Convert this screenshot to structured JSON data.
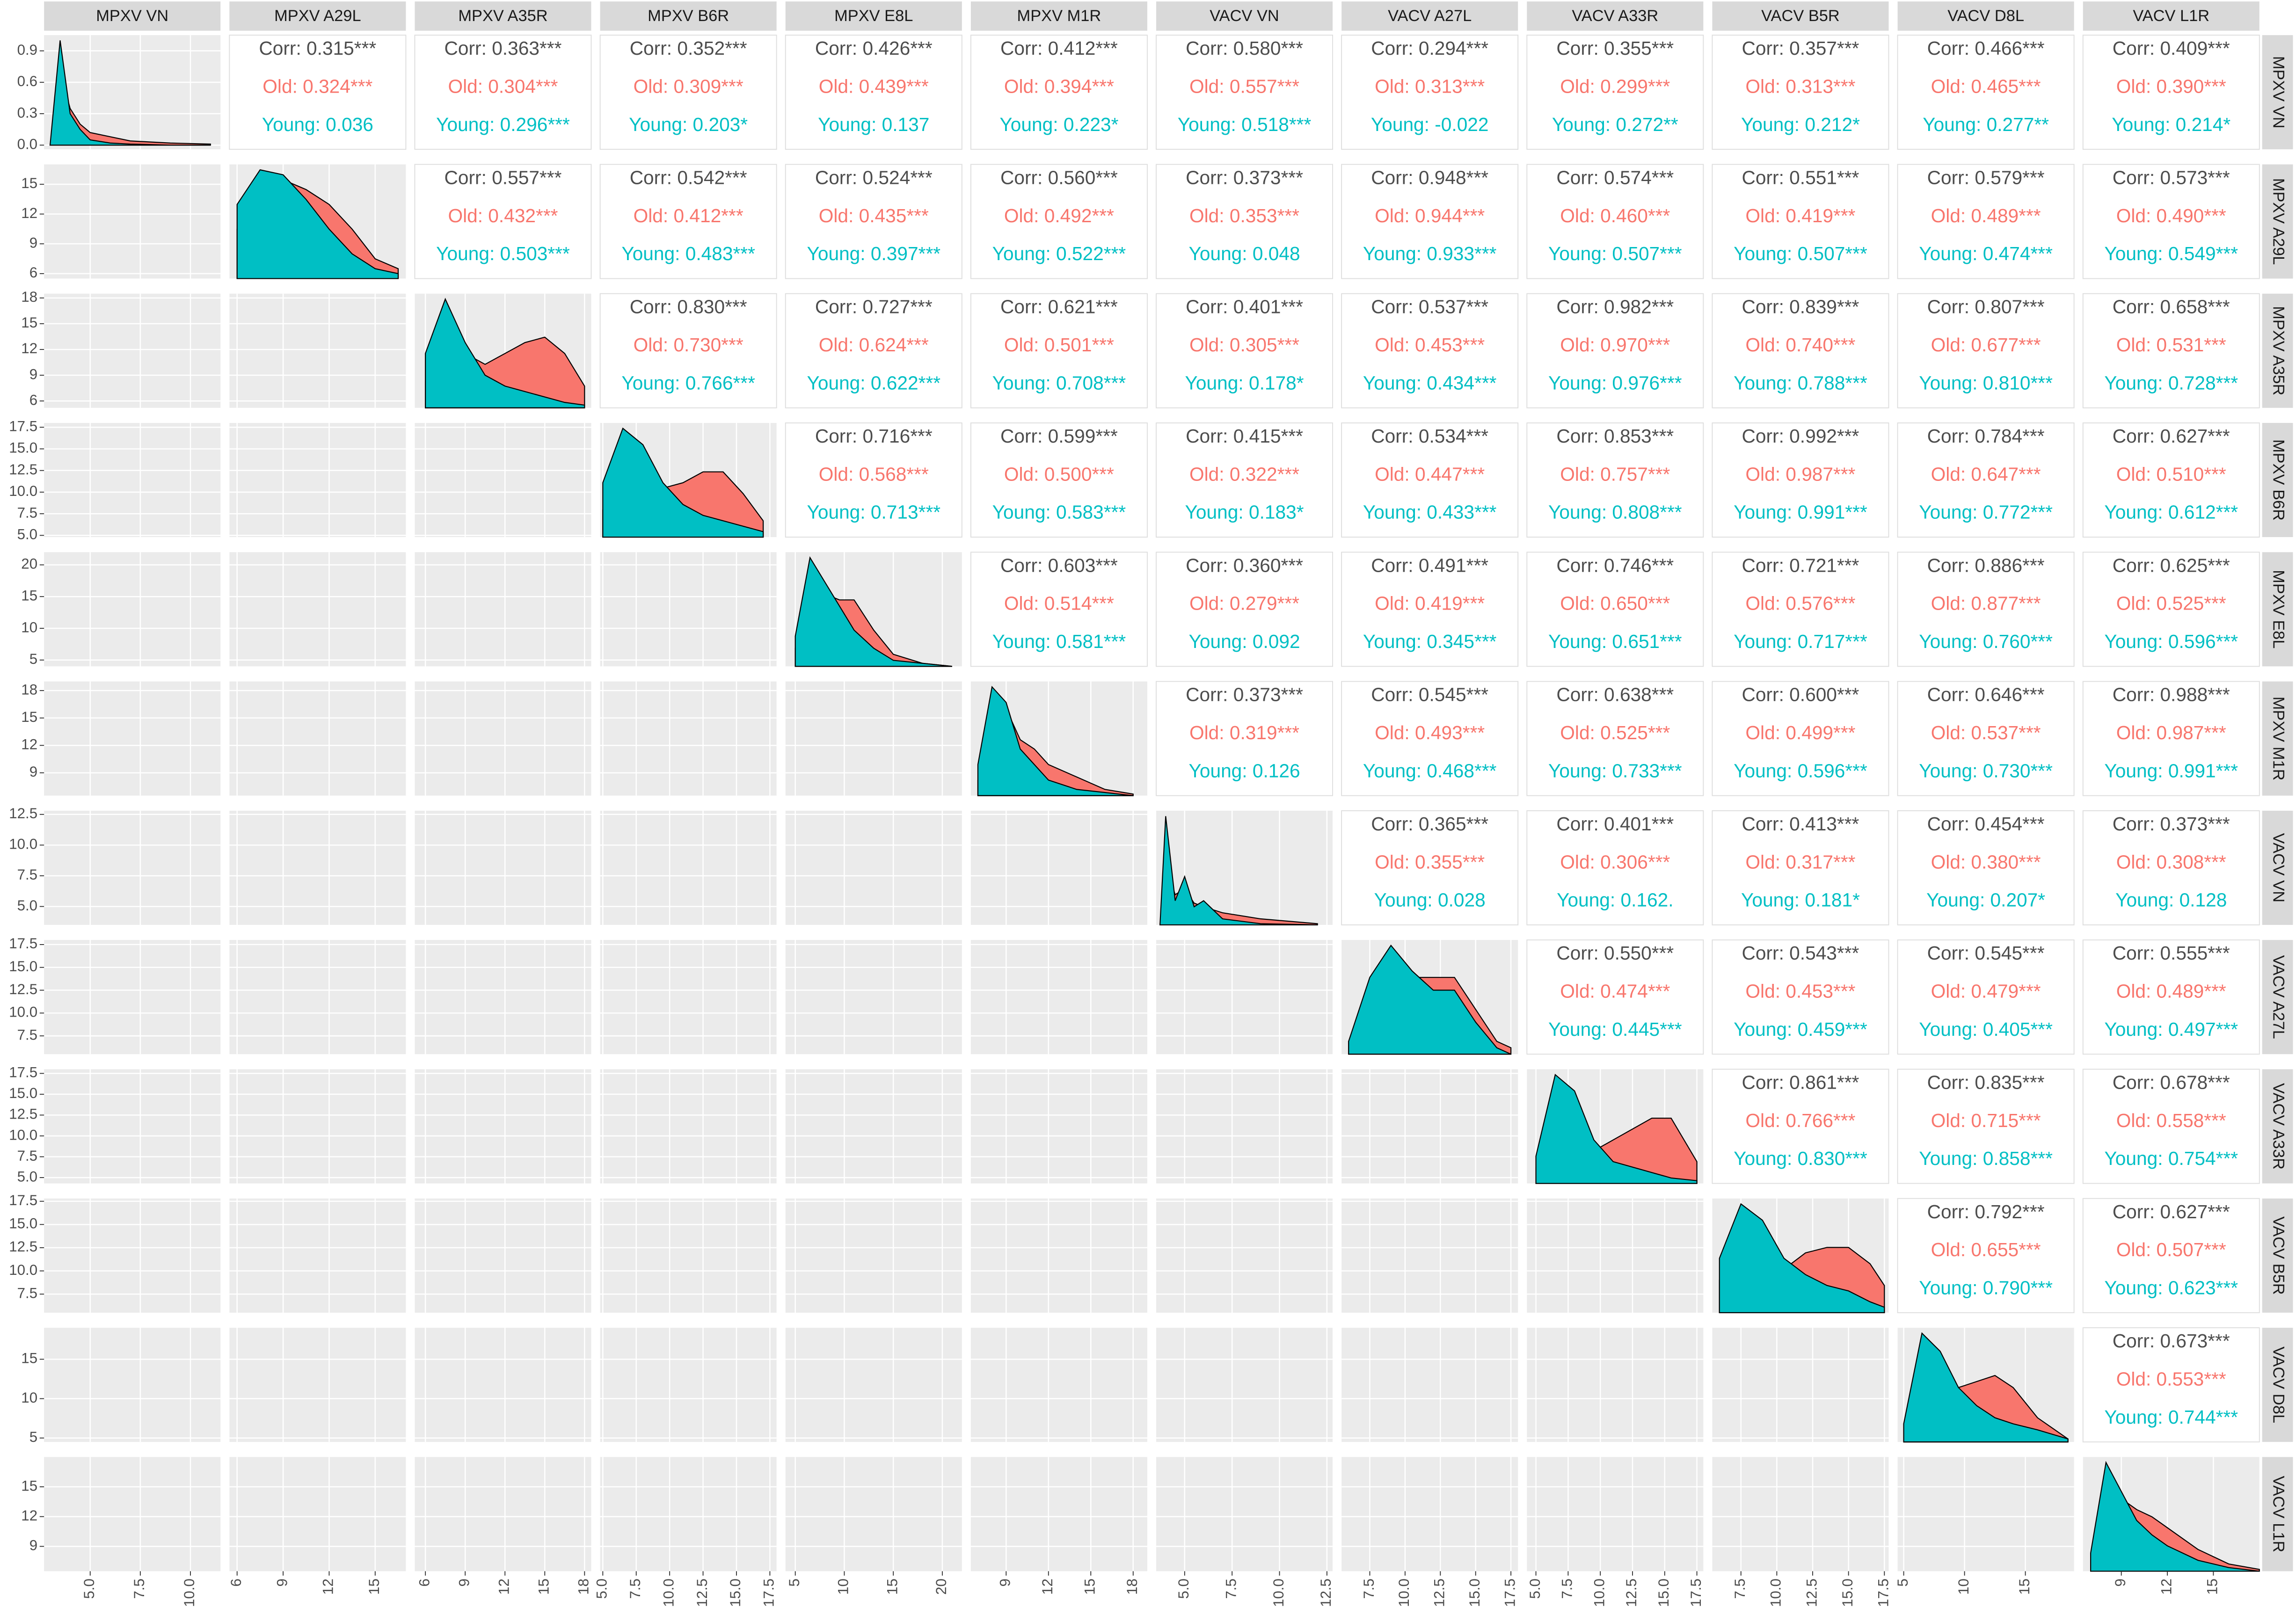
{
  "chart_data": {
    "type": "pairs",
    "groups": [
      {
        "name": "Old",
        "color": "#F8766D"
      },
      {
        "name": "Young",
        "color": "#00BFC4"
      }
    ],
    "corr_color": "#4D4D4D",
    "density_lim": [
      -0.04,
      1.05
    ],
    "density_ticks": [
      {
        "value": 0,
        "label": "0.0"
      },
      0.3,
      0.6,
      0.9
    ],
    "variables": [
      {
        "name": "MPXV VN",
        "lim": [
          2.7,
          11.5
        ],
        "ticks": [
          {
            "value": 5,
            "label": "5.0"
          },
          7.5,
          {
            "value": 10,
            "label": "10.0"
          }
        ],
        "density": {
          "x": [
            3,
            3.5,
            4,
            4.5,
            5,
            6,
            7,
            9,
            11
          ],
          "values": [
            [
              0,
              0.7,
              0.35,
              0.2,
              0.12,
              0.08,
              0.04,
              0.02,
              0.01
            ],
            [
              0,
              1.0,
              0.3,
              0.15,
              0.05,
              0.02,
              0.01,
              0,
              0
            ]
          ]
        }
      },
      {
        "name": "MPXV A29L",
        "lim": [
          5.5,
          17
        ],
        "ticks": [
          6,
          9,
          12,
          15
        ],
        "density": {
          "x": [
            6,
            7.5,
            9,
            10.5,
            12,
            13.5,
            15,
            16.5
          ],
          "values": [
            [
              0.1,
              0.19,
              0.2,
              0.18,
              0.15,
              0.1,
              0.04,
              0.02
            ],
            [
              0.15,
              0.22,
              0.21,
              0.16,
              0.1,
              0.05,
              0.02,
              0.01
            ]
          ]
        }
      },
      {
        "name": "MPXV A35R",
        "lim": [
          5.2,
          18.5
        ],
        "ticks": [
          6,
          9,
          12,
          15,
          18
        ],
        "density": {
          "x": [
            6,
            7.5,
            9,
            10.5,
            12,
            13.5,
            15,
            16.5,
            18
          ],
          "values": [
            [
              0.05,
              0.15,
              0.1,
              0.08,
              0.1,
              0.12,
              0.13,
              0.1,
              0.04
            ],
            [
              0.1,
              0.2,
              0.12,
              0.06,
              0.04,
              0.03,
              0.02,
              0.01,
              0.005
            ]
          ]
        }
      },
      {
        "name": "MPXV B6R",
        "lim": [
          4.8,
          18
        ],
        "ticks": [
          {
            "value": 5,
            "label": "5.0"
          },
          7.5,
          {
            "value": 10,
            "label": "10.0"
          },
          12.5,
          {
            "value": 15,
            "label": "15.0"
          },
          17.5
        ],
        "density": {
          "x": [
            5,
            6.5,
            8,
            9.5,
            11,
            12.5,
            14,
            15.5,
            17
          ],
          "values": [
            [
              0.05,
              0.15,
              0.13,
              0.09,
              0.1,
              0.12,
              0.12,
              0.08,
              0.03
            ],
            [
              0.1,
              0.2,
              0.17,
              0.1,
              0.06,
              0.04,
              0.03,
              0.02,
              0.01
            ]
          ]
        }
      },
      {
        "name": "MPXV E8L",
        "lim": [
          4,
          22
        ],
        "ticks": [
          5,
          10,
          15,
          20
        ],
        "density": {
          "x": [
            5,
            6.5,
            8,
            9.5,
            11,
            13,
            15,
            18,
            21
          ],
          "values": [
            [
              0.03,
              0.15,
              0.12,
              0.11,
              0.11,
              0.06,
              0.02,
              0.005,
              0
            ],
            [
              0.05,
              0.18,
              0.14,
              0.1,
              0.06,
              0.03,
              0.01,
              0.005,
              0
            ]
          ]
        }
      },
      {
        "name": "MPXV M1R",
        "lim": [
          6.5,
          19
        ],
        "ticks": [
          9,
          12,
          15,
          18
        ],
        "density": {
          "x": [
            7,
            8,
            9,
            10,
            11,
            12,
            14,
            16,
            18
          ],
          "values": [
            [
              0.05,
              0.3,
              0.28,
              0.18,
              0.15,
              0.1,
              0.06,
              0.02,
              0.005
            ],
            [
              0.1,
              0.35,
              0.3,
              0.15,
              0.1,
              0.05,
              0.02,
              0.01,
              0
            ]
          ]
        }
      },
      {
        "name": "VACV VN",
        "lim": [
          3.5,
          12.8
        ],
        "ticks": [
          {
            "value": 5,
            "label": "5.0"
          },
          7.5,
          {
            "value": 10,
            "label": "10.0"
          },
          12.5
        ],
        "density": {
          "x": [
            3.7,
            4,
            4.5,
            5,
            5.5,
            6,
            7,
            9,
            12
          ],
          "values": [
            [
              0,
              0.5,
              0.25,
              0.3,
              0.18,
              0.15,
              0.1,
              0.05,
              0.01
            ],
            [
              0,
              0.9,
              0.2,
              0.4,
              0.15,
              0.2,
              0.05,
              0.01,
              0
            ]
          ]
        }
      },
      {
        "name": "VACV A27L",
        "lim": [
          5.5,
          18
        ],
        "ticks": [
          7.5,
          {
            "value": 10,
            "label": "10.0"
          },
          12.5,
          {
            "value": 15,
            "label": "15.0"
          },
          17.5
        ],
        "density": {
          "x": [
            6,
            7.5,
            9,
            10.5,
            12,
            13.5,
            15,
            16.5,
            17.5
          ],
          "values": [
            [
              0.02,
              0.1,
              0.15,
              0.12,
              0.12,
              0.12,
              0.07,
              0.02,
              0.01
            ],
            [
              0.02,
              0.12,
              0.17,
              0.13,
              0.1,
              0.1,
              0.05,
              0.01,
              0
            ]
          ]
        }
      },
      {
        "name": "VACV A33R",
        "lim": [
          4.3,
          18
        ],
        "ticks": [
          {
            "value": 5,
            "label": "5.0"
          },
          7.5,
          {
            "value": 10,
            "label": "10.0"
          },
          12.5,
          {
            "value": 15,
            "label": "15.0"
          },
          17.5
        ],
        "density": {
          "x": [
            5,
            6.5,
            8,
            9.5,
            11,
            12.5,
            14,
            15.5,
            17.5
          ],
          "values": [
            [
              0.03,
              0.12,
              0.1,
              0.06,
              0.08,
              0.1,
              0.12,
              0.12,
              0.04
            ],
            [
              0.05,
              0.2,
              0.17,
              0.08,
              0.04,
              0.03,
              0.02,
              0.01,
              0.005
            ]
          ]
        }
      },
      {
        "name": "VACV B5R",
        "lim": [
          5.5,
          17.8
        ],
        "ticks": [
          7.5,
          {
            "value": 10,
            "label": "10.0"
          },
          12.5,
          {
            "value": 15,
            "label": "15.0"
          },
          17.5
        ],
        "density": {
          "x": [
            6,
            7.5,
            9,
            10.5,
            12,
            13.5,
            15,
            16.5,
            17.5
          ],
          "values": [
            [
              0.06,
              0.14,
              0.1,
              0.08,
              0.11,
              0.12,
              0.12,
              0.09,
              0.05
            ],
            [
              0.1,
              0.2,
              0.17,
              0.1,
              0.07,
              0.05,
              0.04,
              0.02,
              0.01
            ]
          ]
        }
      },
      {
        "name": "VACV D8L",
        "lim": [
          4.5,
          19
        ],
        "ticks": [
          5,
          10,
          15
        ],
        "density": {
          "x": [
            5,
            6.5,
            8,
            9.5,
            11,
            12.5,
            14,
            16,
            18.5
          ],
          "values": [
            [
              0.02,
              0.12,
              0.12,
              0.09,
              0.1,
              0.11,
              0.09,
              0.04,
              0.005
            ],
            [
              0.03,
              0.18,
              0.15,
              0.09,
              0.06,
              0.04,
              0.03,
              0.02,
              0.005
            ]
          ]
        }
      },
      {
        "name": "VACV L1R",
        "lim": [
          6.5,
          18
        ],
        "ticks": [
          9,
          12,
          15
        ],
        "density": {
          "x": [
            7,
            8,
            9,
            10,
            11,
            12,
            14,
            16,
            18
          ],
          "values": [
            [
              0.03,
              0.22,
              0.2,
              0.17,
              0.15,
              0.12,
              0.06,
              0.02,
              0.005
            ],
            [
              0.05,
              0.3,
              0.22,
              0.14,
              0.1,
              0.07,
              0.03,
              0.01,
              0
            ]
          ]
        }
      }
    ],
    "upper": [
      [
        [
          "Corr: 0.315***",
          "Old: 0.324***",
          "Young: 0.036"
        ],
        [
          "Corr: 0.363***",
          "Old: 0.304***",
          "Young: 0.296***"
        ],
        [
          "Corr: 0.352***",
          "Old: 0.309***",
          "Young: 0.203*"
        ],
        [
          "Corr: 0.426***",
          "Old: 0.439***",
          "Young: 0.137"
        ],
        [
          "Corr: 0.412***",
          "Old: 0.394***",
          "Young: 0.223*"
        ],
        [
          "Corr: 0.580***",
          "Old: 0.557***",
          "Young: 0.518***"
        ],
        [
          "Corr: 0.294***",
          "Old: 0.313***",
          "Young: -0.022"
        ],
        [
          "Corr: 0.355***",
          "Old: 0.299***",
          "Young: 0.272**"
        ],
        [
          "Corr: 0.357***",
          "Old: 0.313***",
          "Young: 0.212*"
        ],
        [
          "Corr: 0.466***",
          "Old: 0.465***",
          "Young: 0.277**"
        ],
        [
          "Corr: 0.409***",
          "Old: 0.390***",
          "Young: 0.214*"
        ]
      ],
      [
        [
          "Corr: 0.557***",
          "Old: 0.432***",
          "Young: 0.503***"
        ],
        [
          "Corr: 0.542***",
          "Old: 0.412***",
          "Young: 0.483***"
        ],
        [
          "Corr: 0.524***",
          "Old: 0.435***",
          "Young: 0.397***"
        ],
        [
          "Corr: 0.560***",
          "Old: 0.492***",
          "Young: 0.522***"
        ],
        [
          "Corr: 0.373***",
          "Old: 0.353***",
          "Young: 0.048"
        ],
        [
          "Corr: 0.948***",
          "Old: 0.944***",
          "Young: 0.933***"
        ],
        [
          "Corr: 0.574***",
          "Old: 0.460***",
          "Young: 0.507***"
        ],
        [
          "Corr: 0.551***",
          "Old: 0.419***",
          "Young: 0.507***"
        ],
        [
          "Corr: 0.579***",
          "Old: 0.489***",
          "Young: 0.474***"
        ],
        [
          "Corr: 0.573***",
          "Old: 0.490***",
          "Young: 0.549***"
        ]
      ],
      [
        [
          "Corr: 0.830***",
          "Old: 0.730***",
          "Young: 0.766***"
        ],
        [
          "Corr: 0.727***",
          "Old: 0.624***",
          "Young: 0.622***"
        ],
        [
          "Corr: 0.621***",
          "Old: 0.501***",
          "Young: 0.708***"
        ],
        [
          "Corr: 0.401***",
          "Old: 0.305***",
          "Young: 0.178*"
        ],
        [
          "Corr: 0.537***",
          "Old: 0.453***",
          "Young: 0.434***"
        ],
        [
          "Corr: 0.982***",
          "Old: 0.970***",
          "Young: 0.976***"
        ],
        [
          "Corr: 0.839***",
          "Old: 0.740***",
          "Young: 0.788***"
        ],
        [
          "Corr: 0.807***",
          "Old: 0.677***",
          "Young: 0.810***"
        ],
        [
          "Corr: 0.658***",
          "Old: 0.531***",
          "Young: 0.728***"
        ]
      ],
      [
        [
          "Corr: 0.716***",
          "Old: 0.568***",
          "Young: 0.713***"
        ],
        [
          "Corr: 0.599***",
          "Old: 0.500***",
          "Young: 0.583***"
        ],
        [
          "Corr: 0.415***",
          "Old: 0.322***",
          "Young: 0.183*"
        ],
        [
          "Corr: 0.534***",
          "Old: 0.447***",
          "Young: 0.433***"
        ],
        [
          "Corr: 0.853***",
          "Old: 0.757***",
          "Young: 0.808***"
        ],
        [
          "Corr: 0.992***",
          "Old: 0.987***",
          "Young: 0.991***"
        ],
        [
          "Corr: 0.784***",
          "Old: 0.647***",
          "Young: 0.772***"
        ],
        [
          "Corr: 0.627***",
          "Old: 0.510***",
          "Young: 0.612***"
        ]
      ],
      [
        [
          "Corr: 0.603***",
          "Old: 0.514***",
          "Young: 0.581***"
        ],
        [
          "Corr: 0.360***",
          "Old: 0.279***",
          "Young: 0.092"
        ],
        [
          "Corr: 0.491***",
          "Old: 0.419***",
          "Young: 0.345***"
        ],
        [
          "Corr: 0.746***",
          "Old: 0.650***",
          "Young: 0.651***"
        ],
        [
          "Corr: 0.721***",
          "Old: 0.576***",
          "Young: 0.717***"
        ],
        [
          "Corr: 0.886***",
          "Old: 0.877***",
          "Young: 0.760***"
        ],
        [
          "Corr: 0.625***",
          "Old: 0.525***",
          "Young: 0.596***"
        ]
      ],
      [
        [
          "Corr: 0.373***",
          "Old: 0.319***",
          "Young: 0.126"
        ],
        [
          "Corr: 0.545***",
          "Old: 0.493***",
          "Young: 0.468***"
        ],
        [
          "Corr: 0.638***",
          "Old: 0.525***",
          "Young: 0.733***"
        ],
        [
          "Corr: 0.600***",
          "Old: 0.499***",
          "Young: 0.596***"
        ],
        [
          "Corr: 0.646***",
          "Old: 0.537***",
          "Young: 0.730***"
        ],
        [
          "Corr: 0.988***",
          "Old: 0.987***",
          "Young: 0.991***"
        ]
      ],
      [
        [
          "Corr: 0.365***",
          "Old: 0.355***",
          "Young: 0.028"
        ],
        [
          "Corr: 0.401***",
          "Old: 0.306***",
          "Young: 0.162."
        ],
        [
          "Corr: 0.413***",
          "Old: 0.317***",
          "Young: 0.181*"
        ],
        [
          "Corr: 0.454***",
          "Old: 0.380***",
          "Young: 0.207*"
        ],
        [
          "Corr: 0.373***",
          "Old: 0.308***",
          "Young: 0.128"
        ]
      ],
      [
        [
          "Corr: 0.550***",
          "Old: 0.474***",
          "Young: 0.445***"
        ],
        [
          "Corr: 0.543***",
          "Old: 0.453***",
          "Young: 0.459***"
        ],
        [
          "Corr: 0.545***",
          "Old: 0.479***",
          "Young: 0.405***"
        ],
        [
          "Corr: 0.555***",
          "Old: 0.489***",
          "Young: 0.497***"
        ]
      ],
      [
        [
          "Corr: 0.861***",
          "Old: 0.766***",
          "Young: 0.830***"
        ],
        [
          "Corr: 0.835***",
          "Old: 0.715***",
          "Young: 0.858***"
        ],
        [
          "Corr: 0.678***",
          "Old: 0.558***",
          "Young: 0.754***"
        ]
      ],
      [
        [
          "Corr: 0.792***",
          "Old: 0.655***",
          "Young: 0.790***"
        ],
        [
          "Corr: 0.627***",
          "Old: 0.507***",
          "Young: 0.623***"
        ]
      ],
      [
        [
          "Corr: 0.673***",
          "Old: 0.553***",
          "Young: 0.744***"
        ]
      ],
      []
    ]
  }
}
